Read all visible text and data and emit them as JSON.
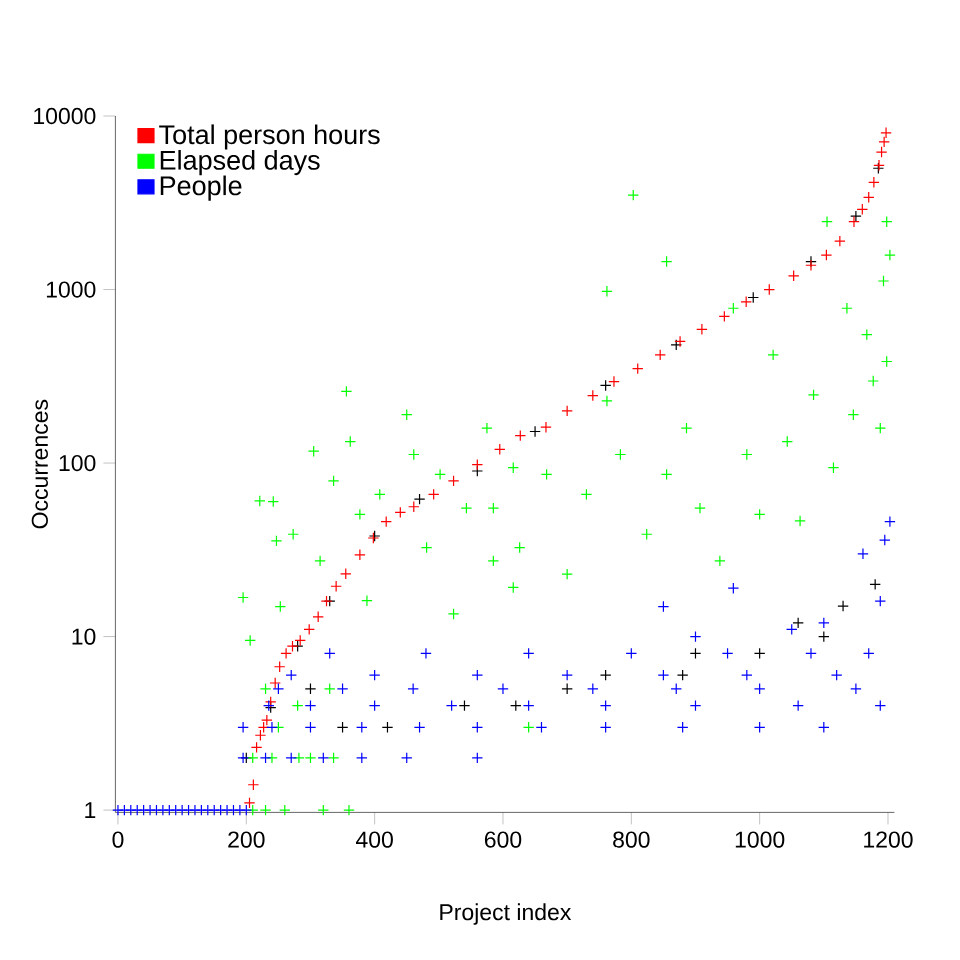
{
  "chart_data": {
    "type": "scatter",
    "xlabel": "Project index",
    "ylabel": "Occurrences",
    "log": "y",
    "marker": "cross",
    "legend": "top left",
    "grid": false,
    "xlim": [
      -4,
      1210
    ],
    "ylim": [
      0.97,
      10000
    ],
    "xticks": [
      0,
      200,
      400,
      600,
      800,
      1000,
      1200
    ],
    "yticks": [
      1,
      10,
      100,
      1000,
      10000
    ],
    "series": [
      {
        "color": "#000000",
        "x": [
          238,
          280,
          330,
          400,
          470,
          560,
          650,
          760,
          870,
          990,
          1080,
          1150,
          1185,
          200,
          350,
          540,
          700,
          880,
          1000,
          1100,
          420,
          620,
          900,
          1060,
          1130,
          300,
          760,
          1180
        ],
        "values": [
          3.9,
          8.8,
          16,
          38,
          62,
          90,
          152,
          280,
          480,
          900,
          1450,
          2650,
          5000,
          2,
          3,
          4,
          5,
          6,
          8,
          10,
          3,
          4,
          8,
          12,
          15,
          5,
          6,
          20
        ]
      },
      {
        "name": "Total person hours",
        "color": "#ff0000",
        "x": [
          205,
          211,
          216,
          222,
          227,
          232,
          238,
          245,
          252,
          262,
          272,
          284,
          298,
          312,
          325,
          340,
          355,
          377,
          398,
          418,
          440,
          461,
          492,
          523,
          560,
          595,
          627,
          667,
          700,
          740,
          773,
          810,
          845,
          876,
          910,
          945,
          979,
          1015,
          1053,
          1080,
          1104,
          1125,
          1147,
          1160,
          1170,
          1178,
          1186,
          1190,
          1194,
          1197
        ],
        "values": [
          1.1,
          1.4,
          2.3,
          2.7,
          3.0,
          3.3,
          4.2,
          5.4,
          6.7,
          8.0,
          8.8,
          9.5,
          11,
          13,
          16,
          19.5,
          23,
          29.6,
          37,
          46,
          52,
          56,
          66,
          79,
          98,
          120,
          144,
          161,
          200,
          245,
          295,
          350,
          420,
          502,
          590,
          700,
          850,
          1000,
          1200,
          1380,
          1580,
          1900,
          2460,
          2900,
          3400,
          4150,
          5200,
          6200,
          7100,
          8000
        ]
      },
      {
        "name": "Elapsed days",
        "color": "#00ff00",
        "x": [
          195,
          206,
          221,
          242,
          247,
          253,
          273,
          305,
          315,
          336,
          356,
          362,
          377,
          388,
          408,
          450,
          461,
          481,
          502,
          523,
          543,
          575,
          585,
          616,
          616,
          585,
          626,
          668,
          700,
          730,
          762,
          762,
          783,
          803,
          824,
          855,
          855,
          886,
          907,
          938,
          959,
          980,
          1000,
          1021,
          1043,
          1063,
          1084,
          1105,
          1115,
          1136,
          1146,
          1167,
          1177,
          1188,
          1193,
          1198,
          1203,
          1198,
          210,
          230,
          260,
          320,
          360,
          210,
          240,
          282,
          300,
          336,
          250,
          280,
          230,
          330,
          640
        ],
        "values": [
          16.8,
          9.5,
          60.5,
          60,
          35.6,
          14.9,
          38.9,
          117,
          27.3,
          79,
          259,
          133,
          50.6,
          16.1,
          66,
          190,
          112,
          32.6,
          86,
          13.5,
          55,
          159,
          27.3,
          94,
          19.2,
          55,
          32.6,
          86,
          22.9,
          66,
          228,
          977,
          112,
          3500,
          38.9,
          1450,
          86,
          159,
          55,
          27.3,
          780,
          112,
          50.6,
          420,
          133,
          46.4,
          247,
          2460,
          94,
          780,
          190,
          550,
          297,
          159,
          1120,
          2460,
          1580,
          385,
          1,
          1,
          1,
          1,
          1,
          2,
          2,
          2,
          2,
          2,
          3,
          4,
          5,
          5,
          3
        ]
      },
      {
        "name": "People",
        "color": "#0000ff",
        "x": [
          0,
          10,
          20,
          30,
          40,
          50,
          60,
          70,
          80,
          90,
          100,
          110,
          120,
          130,
          140,
          150,
          160,
          170,
          180,
          190,
          200,
          195,
          230,
          270,
          320,
          380,
          450,
          560,
          195,
          240,
          300,
          380,
          470,
          560,
          660,
          760,
          880,
          1000,
          1100,
          235,
          300,
          400,
          520,
          640,
          760,
          900,
          1060,
          250,
          350,
          460,
          600,
          740,
          870,
          1000,
          1150,
          270,
          400,
          560,
          700,
          850,
          980,
          1120,
          330,
          480,
          640,
          800,
          950,
          1080,
          1170,
          850,
          959,
          1100,
          1161,
          1188,
          1188,
          1203,
          1195,
          900,
          1050
        ],
        "values": [
          1,
          1,
          1,
          1,
          1,
          1,
          1,
          1,
          1,
          1,
          1,
          1,
          1,
          1,
          1,
          1,
          1,
          1,
          1,
          1,
          1,
          2,
          2,
          2,
          2,
          2,
          2,
          2,
          3,
          3,
          3,
          3,
          3,
          3,
          3,
          3,
          3,
          3,
          3,
          4,
          4,
          4,
          4,
          4,
          4,
          4,
          4,
          5,
          5,
          5,
          5,
          5,
          5,
          5,
          5,
          6,
          6,
          6,
          6,
          6,
          6,
          6,
          8,
          8,
          8,
          8,
          8,
          8,
          8,
          14.9,
          19,
          12,
          30,
          16,
          4,
          46,
          36,
          10,
          11
        ]
      }
    ]
  }
}
